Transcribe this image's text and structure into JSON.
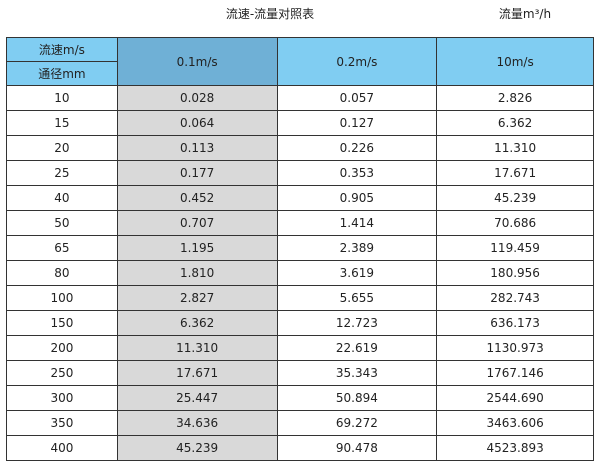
{
  "title": "流速-流量对照表",
  "unit_label": "流量m³/h",
  "table": {
    "corner_top": "流速m/s",
    "corner_bottom": "通径mm",
    "columns": [
      "0.1m/s",
      "0.2m/s",
      "10m/s"
    ],
    "rows": [
      [
        "10",
        "0.028",
        "0.057",
        "2.826"
      ],
      [
        "15",
        "0.064",
        "0.127",
        "6.362"
      ],
      [
        "20",
        "0.113",
        "0.226",
        "11.310"
      ],
      [
        "25",
        "0.177",
        "0.353",
        "17.671"
      ],
      [
        "40",
        "0.452",
        "0.905",
        "45.239"
      ],
      [
        "50",
        "0.707",
        "1.414",
        "70.686"
      ],
      [
        "65",
        "1.195",
        "2.389",
        "119.459"
      ],
      [
        "80",
        "1.810",
        "3.619",
        "180.956"
      ],
      [
        "100",
        "2.827",
        "5.655",
        "282.743"
      ],
      [
        "150",
        "6.362",
        "12.723",
        "636.173"
      ],
      [
        "200",
        "11.310",
        "22.619",
        "1130.973"
      ],
      [
        "250",
        "17.671",
        "35.343",
        "1767.146"
      ],
      [
        "300",
        "25.447",
        "50.894",
        "2544.690"
      ],
      [
        "350",
        "34.636",
        "69.272",
        "3463.606"
      ],
      [
        "400",
        "45.239",
        "90.478",
        "4523.893"
      ]
    ]
  },
  "colors": {
    "header": "#80cdf2",
    "header_selected": "#6fb0d6",
    "column_shade": "#d9d9d9"
  }
}
